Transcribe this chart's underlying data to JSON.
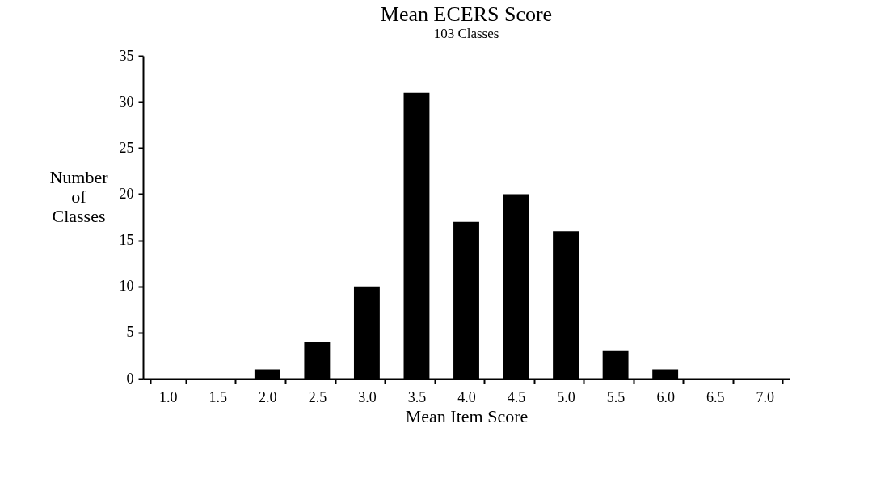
{
  "chart_data": {
    "type": "bar",
    "title": "Mean ECERS Score",
    "subtitle": "103 Classes",
    "xlabel": "Mean Item Score",
    "ylabel": "Number of Classes",
    "categories": [
      "1.0",
      "1.5",
      "2.0",
      "2.5",
      "3.0",
      "3.5",
      "4.0",
      "4.5",
      "5.0",
      "5.5",
      "6.0",
      "6.5",
      "7.0"
    ],
    "values": [
      0,
      0,
      1,
      4,
      10,
      31,
      17,
      20,
      16,
      3,
      1,
      0,
      0
    ],
    "color": "#000000",
    "ylim": [
      0,
      35
    ],
    "yticks": [
      0,
      5,
      10,
      15,
      20,
      25,
      30,
      35
    ],
    "grid": false
  }
}
